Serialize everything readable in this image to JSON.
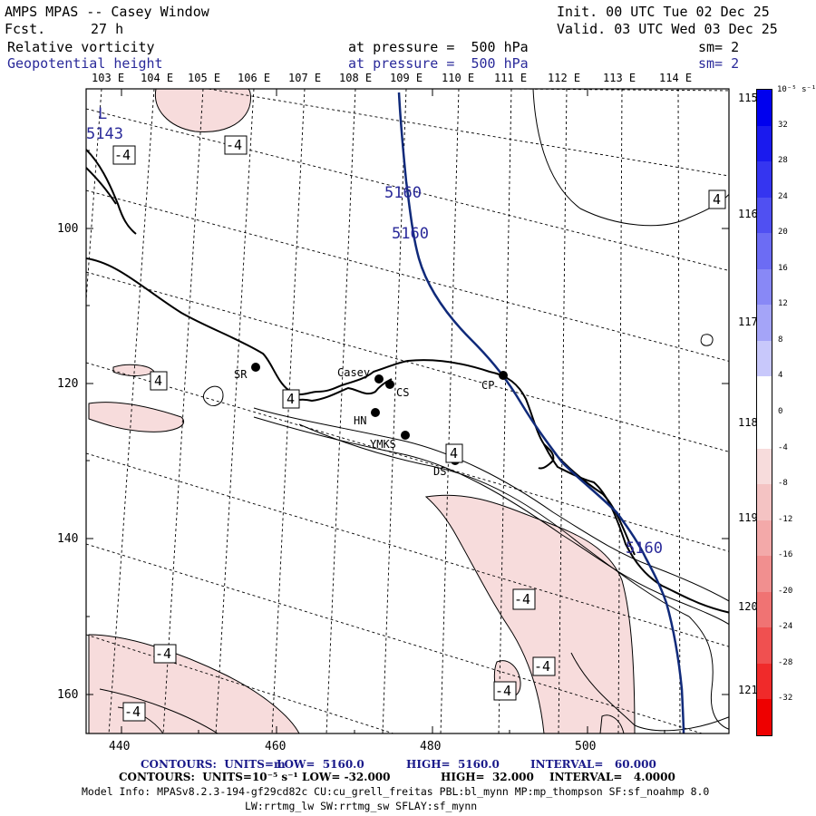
{
  "header": {
    "title": "AMPS MPAS -- Casey Window",
    "fcst_label": "Fcst.",
    "fcst_value": "27 h",
    "init": "Init. 00 UTC Tue 02 Dec 25",
    "valid": "Valid. 03 UTC Wed 03 Dec 25",
    "field1": "Relative vorticity",
    "field2": "Geopotential height",
    "level1": "at pressure =  500 hPa",
    "level2": "at pressure =  500 hPa",
    "sm1": "sm= 2",
    "sm2": "sm= 2"
  },
  "map": {
    "lon_top_labels": [
      "103 E",
      "104 E",
      "105 E",
      "106 E",
      "107 E",
      "108 E",
      "109 E",
      "110 E",
      "111 E",
      "112 E",
      "113 E",
      "114 E"
    ],
    "lon_right_labels": [
      "115 E",
      "116 E",
      "117 E",
      "118 E",
      "119 E",
      "120 E",
      "121 E"
    ],
    "y_ticks": [
      "100",
      "120",
      "140",
      "160"
    ],
    "x_ticks": [
      "440",
      "460",
      "480",
      "500"
    ],
    "stations": [
      {
        "name": "SR"
      },
      {
        "name": "Casey"
      },
      {
        "name": "CS"
      },
      {
        "name": "CP"
      },
      {
        "name": "HN"
      },
      {
        "name": "YMKS"
      },
      {
        "name": "DS"
      }
    ],
    "height_labels": [
      "5143",
      "5160",
      "5160",
      "5160"
    ],
    "low_label": "L",
    "vort_labels": [
      "-4",
      "-4",
      "4",
      "4",
      "4",
      "4",
      "-4",
      "-4",
      "-4",
      "-4",
      "-4"
    ],
    "colors": {
      "height_contour": "#102a7a",
      "vort_pos_shade": "#f7dcdc",
      "vort_contour": "#000000"
    }
  },
  "colorbar": {
    "unit": "10⁻⁵ s⁻¹",
    "labels": [
      "32",
      "28",
      "24",
      "20",
      "16",
      "12",
      "8",
      "4",
      "0",
      "-4",
      "-8",
      "-12",
      "-16",
      "-20",
      "-24",
      "-28",
      "-32"
    ],
    "colors": [
      "#0000ee",
      "#1a1aee",
      "#3535f0",
      "#5050f2",
      "#6c6cf4",
      "#8888f6",
      "#a4a4f8",
      "#c8c8fb",
      "#ffffff",
      "#ffffff",
      "#f7dcdc",
      "#f4c3c3",
      "#f3a9a9",
      "#f18f8f",
      "#f07373",
      "#f05050",
      "#f02a2a",
      "#ee0000"
    ]
  },
  "footer": {
    "contours1_label": "CONTOURS:  UNITS=m",
    "contours1_low": "LOW=  5160.0",
    "contours1_high": "HIGH=  5160.0",
    "contours1_interval": "INTERVAL=   60.000",
    "contours2_label": "CONTOURS:  UNITS=10⁻⁵ s⁻¹",
    "contours2_low": "LOW= -32.000",
    "contours2_high": "HIGH=  32.000",
    "contours2_interval": "INTERVAL=   4.0000",
    "model_info": "Model Info: MPASv8.2.3-194-gf29cd82c CU:cu_grell_freitas PBL:bl_mynn MP:mp_thompson SF:sf_noahmp 8.0",
    "model_info2": "LW:rrtmg_lw SW:rrtmg_sw SFLAY:sf_mynn"
  }
}
